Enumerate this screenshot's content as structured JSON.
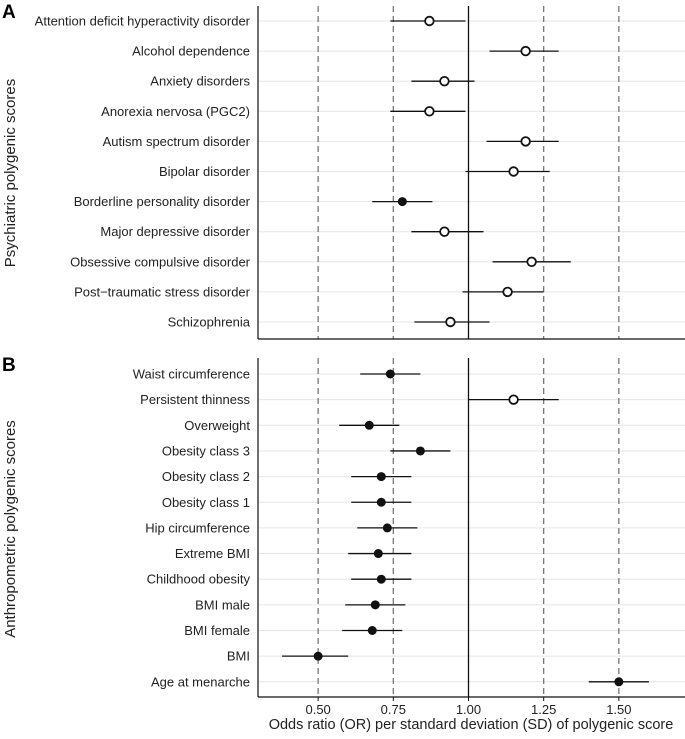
{
  "chart_data": {
    "type": "forest",
    "xlabel": "Odds ratio (OR) per standard deviation (SD) of polygenic score",
    "x_ticks": [
      "0.50",
      "0.75",
      "1.00",
      "1.25",
      "1.50"
    ],
    "x_tick_values": [
      0.5,
      0.75,
      1.0,
      1.25,
      1.5
    ],
    "xlim": [
      0.3,
      1.72
    ],
    "reference_line": 1.0,
    "dashed_lines": [
      0.5,
      0.75,
      1.25,
      1.5
    ],
    "panels": [
      {
        "letter": "A",
        "ylabel": "Psychiatric polygenic scores",
        "rows": [
          {
            "label": "Attention deficit hyperactivity disorder",
            "or": 0.87,
            "lo": 0.74,
            "hi": 0.99,
            "filled": false
          },
          {
            "label": "Alcohol dependence",
            "or": 1.19,
            "lo": 1.07,
            "hi": 1.3,
            "filled": false
          },
          {
            "label": "Anxiety disorders",
            "or": 0.92,
            "lo": 0.81,
            "hi": 1.02,
            "filled": false
          },
          {
            "label": "Anorexia nervosa (PGC2)",
            "or": 0.87,
            "lo": 0.74,
            "hi": 0.99,
            "filled": false
          },
          {
            "label": "Autism spectrum disorder",
            "or": 1.19,
            "lo": 1.06,
            "hi": 1.3,
            "filled": false
          },
          {
            "label": "Bipolar disorder",
            "or": 1.15,
            "lo": 0.99,
            "hi": 1.27,
            "filled": false
          },
          {
            "label": "Borderline personality disorder",
            "or": 0.78,
            "lo": 0.68,
            "hi": 0.88,
            "filled": true
          },
          {
            "label": "Major depressive disorder",
            "or": 0.92,
            "lo": 0.81,
            "hi": 1.05,
            "filled": false
          },
          {
            "label": "Obsessive compulsive disorder",
            "or": 1.21,
            "lo": 1.08,
            "hi": 1.34,
            "filled": false
          },
          {
            "label": "Post−traumatic stress disorder",
            "or": 1.13,
            "lo": 0.98,
            "hi": 1.25,
            "filled": false
          },
          {
            "label": "Schizophrenia",
            "or": 0.94,
            "lo": 0.82,
            "hi": 1.07,
            "filled": false
          }
        ]
      },
      {
        "letter": "B",
        "ylabel": "Anthropometric polygenic scores",
        "rows": [
          {
            "label": "Waist circumference",
            "or": 0.74,
            "lo": 0.64,
            "hi": 0.84,
            "filled": true
          },
          {
            "label": "Persistent thinness",
            "or": 1.15,
            "lo": 1.0,
            "hi": 1.3,
            "filled": false
          },
          {
            "label": "Overweight",
            "or": 0.67,
            "lo": 0.57,
            "hi": 0.77,
            "filled": true
          },
          {
            "label": "Obesity class 3",
            "or": 0.84,
            "lo": 0.74,
            "hi": 0.94,
            "filled": true
          },
          {
            "label": "Obesity class 2",
            "or": 0.71,
            "lo": 0.61,
            "hi": 0.81,
            "filled": true
          },
          {
            "label": "Obesity class 1",
            "or": 0.71,
            "lo": 0.61,
            "hi": 0.81,
            "filled": true
          },
          {
            "label": "Hip circumference",
            "or": 0.73,
            "lo": 0.63,
            "hi": 0.83,
            "filled": true
          },
          {
            "label": "Extreme BMI",
            "or": 0.7,
            "lo": 0.6,
            "hi": 0.81,
            "filled": true
          },
          {
            "label": "Childhood obesity",
            "or": 0.71,
            "lo": 0.61,
            "hi": 0.81,
            "filled": true
          },
          {
            "label": "BMI male",
            "or": 0.69,
            "lo": 0.59,
            "hi": 0.79,
            "filled": true
          },
          {
            "label": "BMI female",
            "or": 0.68,
            "lo": 0.58,
            "hi": 0.78,
            "filled": true
          },
          {
            "label": "BMI",
            "or": 0.5,
            "lo": 0.38,
            "hi": 0.6,
            "filled": true
          },
          {
            "label": "Age at menarche",
            "or": 1.5,
            "lo": 1.4,
            "hi": 1.6,
            "filled": true
          }
        ]
      }
    ]
  }
}
